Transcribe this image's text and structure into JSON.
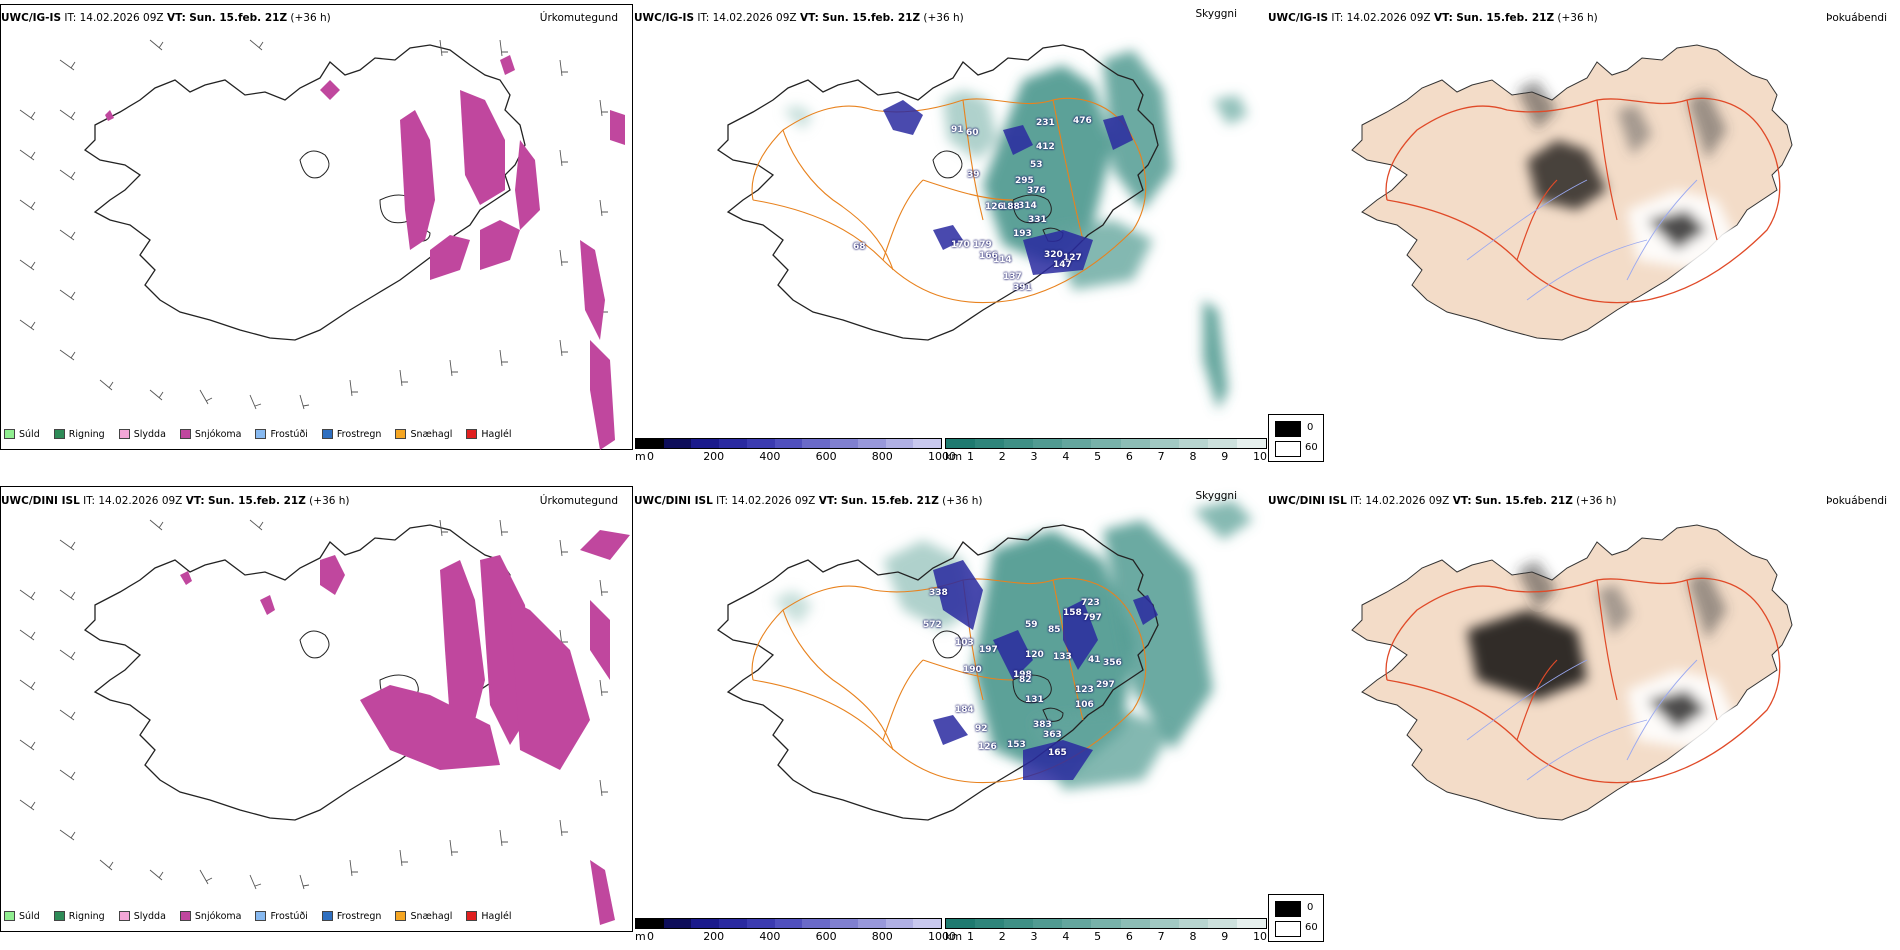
{
  "panels": [
    {
      "row": 0,
      "model": "UWC/IG-IS",
      "it": "IT: 14.02.2026 09Z",
      "vt_label": "VT:",
      "vt": "Sun. 15.feb. 21Z",
      "lead": "(+36 h)",
      "precip_title": "Úrkomutegund",
      "vis_title": "Skyggni",
      "fog_title": "Þokuábendi",
      "cloud_labels": [
        "91",
        "60",
        "295",
        "231",
        "412",
        "476",
        "53",
        "39",
        "376",
        "314",
        "188",
        "126",
        "331",
        "193",
        "179",
        "320",
        "127",
        "114",
        "137",
        "147",
        "391",
        "170",
        "166",
        "68"
      ]
    },
    {
      "row": 1,
      "model": "UWC/DINI ISL",
      "it": "IT: 14.02.2026 09Z",
      "vt_label": "VT:",
      "vt": "Sun. 15.feb. 21Z",
      "lead": "(+36 h)",
      "precip_title": "Úrkomutegund",
      "vis_title": "Skyggni",
      "fog_title": "Þokuábendi",
      "cloud_labels": [
        "338",
        "723",
        "158",
        "797",
        "572",
        "103",
        "197",
        "85",
        "59",
        "120",
        "133",
        "41",
        "356",
        "190",
        "198",
        "297",
        "82",
        "123",
        "131",
        "106",
        "383",
        "184",
        "92",
        "126",
        "153",
        "363",
        "165"
      ]
    }
  ],
  "precip_legend": [
    {
      "label": "Súld",
      "color": "#90ee90"
    },
    {
      "label": "Rigning",
      "color": "#2e8b57"
    },
    {
      "label": "Slydda",
      "color": "#f4a6d7"
    },
    {
      "label": "Snjókoma",
      "color": "#c0479e"
    },
    {
      "label": "Frostúði",
      "color": "#87b9f0"
    },
    {
      "label": "Frostregn",
      "color": "#2f6fc0"
    },
    {
      "label": "Snæhagl",
      "color": "#f5a623"
    },
    {
      "label": "Haglél",
      "color": "#e02020"
    }
  ],
  "cloud_base_bar": {
    "unit": "m",
    "ticks": [
      "0",
      "200",
      "400",
      "600",
      "800",
      "1000"
    ],
    "colors": [
      "#000000",
      "#0d0d5a",
      "#1a1a8c",
      "#2a2aa0",
      "#3b3bb0",
      "#5050be",
      "#6a6ac8",
      "#8080d0",
      "#9898da",
      "#b0b0e4",
      "#c8c8ee"
    ]
  },
  "visibility_bar": {
    "unit": "km",
    "ticks": [
      "1",
      "2",
      "3",
      "4",
      "5",
      "6",
      "7",
      "8",
      "9",
      "10"
    ],
    "colors": [
      "#1e7a70",
      "#2e857b",
      "#3f9086",
      "#519b92",
      "#64a69e",
      "#78b2aa",
      "#8dbdb6",
      "#a2c9c3",
      "#b8d5d0",
      "#cde1dd",
      "#e6f0ee"
    ]
  },
  "fog_legend": {
    "values": [
      "0",
      "60"
    ],
    "colors": [
      "#000000",
      "#ffffff"
    ]
  },
  "colors": {
    "snow": "#c0479e",
    "road": "#e8821e",
    "fog_land": "#f3dcc8",
    "fog_road": "#e04a28",
    "fog_river": "#9aa8f0",
    "vis_teal": "#3f9086",
    "cloud_blue": "#2a2aa0"
  }
}
